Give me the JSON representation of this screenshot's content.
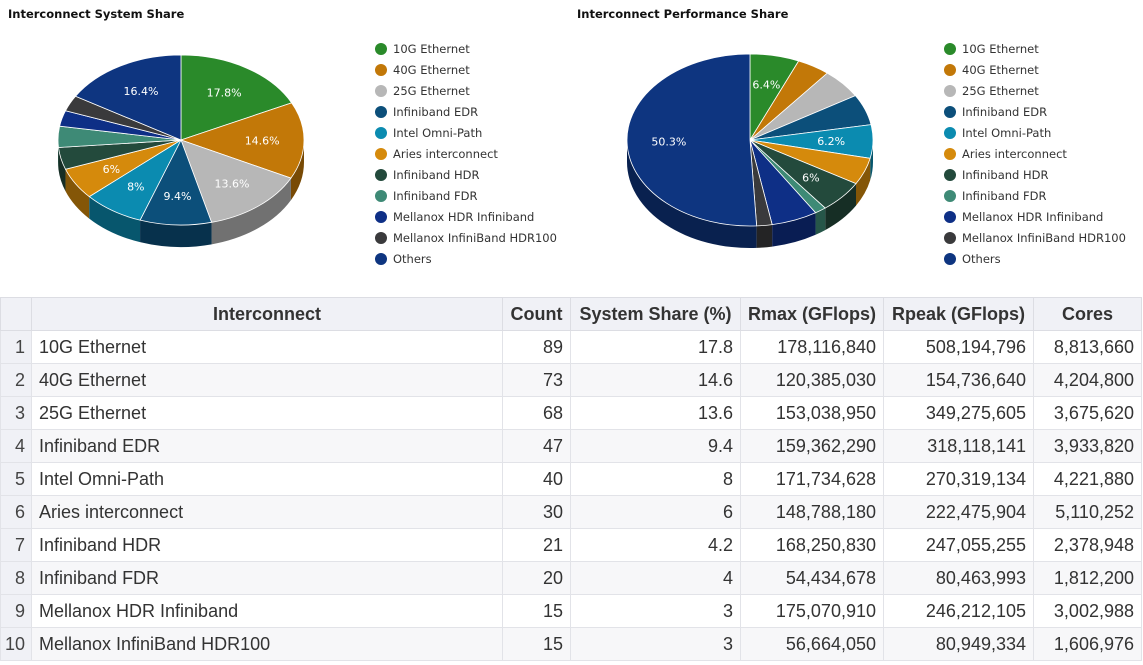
{
  "chart_data": [
    {
      "type": "pie",
      "title": "Interconnect System Share",
      "legend_placement": "right",
      "categories": [
        "10G Ethernet",
        "40G Ethernet",
        "25G Ethernet",
        "Infiniband EDR",
        "Intel Omni-Path",
        "Aries interconnect",
        "Infiniband HDR",
        "Infiniband FDR",
        "Mellanox HDR Infiniband",
        "Mellanox InfiniBand HDR100",
        "Others"
      ],
      "values": [
        17.8,
        14.6,
        13.6,
        9.4,
        8,
        6,
        4.2,
        4,
        3,
        3,
        16.4
      ],
      "data_labels": [
        "17.8%",
        "14.6%",
        "13.6%",
        "9.4%",
        "8%",
        "6%",
        "",
        "",
        "",
        "",
        "16.4%"
      ],
      "colors": [
        "#2a8a2a",
        "#c27808",
        "#b7b7b7",
        "#0c4f7a",
        "#0b8bb0",
        "#d58a0c",
        "#234a3c",
        "#3e8a76",
        "#0e2f86",
        "#3a3a3c",
        "#0e3580"
      ]
    },
    {
      "type": "pie",
      "title": "Interconnect Performance Share",
      "legend_placement": "right",
      "categories": [
        "10G Ethernet",
        "40G Ethernet",
        "25G Ethernet",
        "Infiniband EDR",
        "Intel Omni-Path",
        "Aries interconnect",
        "Infiniband HDR",
        "Infiniband FDR",
        "Mellanox HDR Infiniband",
        "Mellanox InfiniBand HDR100",
        "Others"
      ],
      "values": [
        6.4,
        4.3,
        5.5,
        5.7,
        6.2,
        5.0,
        6,
        1.5,
        6.0,
        2.0,
        50.3
      ],
      "data_labels": [
        "6.4%",
        "",
        "",
        "",
        "6.2%",
        "",
        "6%",
        "",
        "",
        "",
        "50.3%"
      ],
      "colors": [
        "#2a8a2a",
        "#c27808",
        "#b7b7b7",
        "#0c4f7a",
        "#0b8bb0",
        "#d58a0c",
        "#234a3c",
        "#3e8a76",
        "#0e2f86",
        "#3a3a3c",
        "#0e3580"
      ]
    }
  ],
  "table": {
    "headers": [
      "Interconnect",
      "Count",
      "System Share (%)",
      "Rmax (GFlops)",
      "Rpeak (GFlops)",
      "Cores"
    ],
    "rows": [
      [
        "1",
        "10G Ethernet",
        "89",
        "17.8",
        "178,116,840",
        "508,194,796",
        "8,813,660"
      ],
      [
        "2",
        "40G Ethernet",
        "73",
        "14.6",
        "120,385,030",
        "154,736,640",
        "4,204,800"
      ],
      [
        "3",
        "25G Ethernet",
        "68",
        "13.6",
        "153,038,950",
        "349,275,605",
        "3,675,620"
      ],
      [
        "4",
        "Infiniband EDR",
        "47",
        "9.4",
        "159,362,290",
        "318,118,141",
        "3,933,820"
      ],
      [
        "5",
        "Intel Omni-Path",
        "40",
        "8",
        "171,734,628",
        "270,319,134",
        "4,221,880"
      ],
      [
        "6",
        "Aries interconnect",
        "30",
        "6",
        "148,788,180",
        "222,475,904",
        "5,110,252"
      ],
      [
        "7",
        "Infiniband HDR",
        "21",
        "4.2",
        "168,250,830",
        "247,055,255",
        "2,378,948"
      ],
      [
        "8",
        "Infiniband FDR",
        "20",
        "4",
        "54,434,678",
        "80,463,993",
        "1,812,200"
      ],
      [
        "9",
        "Mellanox HDR Infiniband",
        "15",
        "3",
        "175,070,910",
        "246,212,105",
        "3,002,988"
      ],
      [
        "10",
        "Mellanox InfiniBand HDR100",
        "15",
        "3",
        "56,664,050",
        "80,949,334",
        "1,606,976"
      ]
    ]
  }
}
